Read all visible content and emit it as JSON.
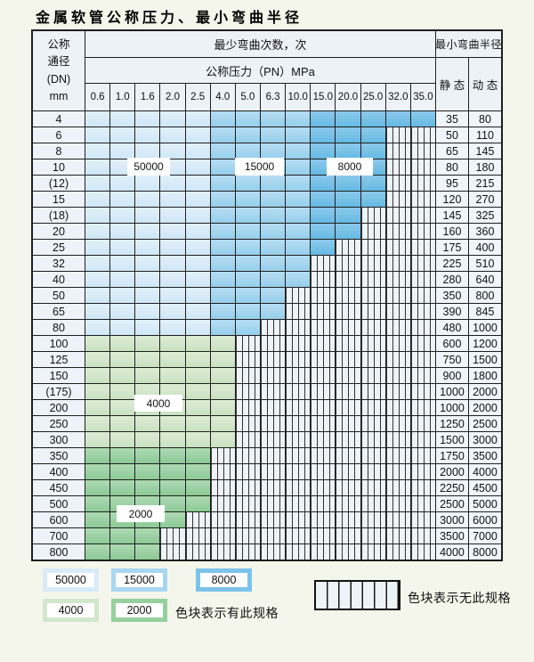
{
  "title": "金属软管公称压力、最小弯曲半径",
  "table": {
    "header": {
      "dn_lines": [
        "公称",
        "通径",
        "(DN)",
        "mm"
      ],
      "min_bend_cycles_title": "最少弯曲次数，次",
      "nominal_pressure_title": "公称压力（PN）MPa",
      "min_bend_radius_title": "最小弯曲半径",
      "static_label": "静 态",
      "dynamic_label": "动 态",
      "pressures": [
        "0.6",
        "1.0",
        "1.6",
        "2.0",
        "2.5",
        "4.0",
        "5.0",
        "6.3",
        "10.0",
        "15.0",
        "20.0",
        "25.0",
        "32.0",
        "35.0"
      ]
    },
    "zone_labels": {
      "z50000": "50000",
      "z15000": "15000",
      "z8000": "8000",
      "z4000": "4000",
      "z2000": "2000"
    },
    "rows": [
      {
        "dn": "4",
        "zone": "blue",
        "last_colored_col": 13,
        "static_radius": "35",
        "dynamic_radius": "80"
      },
      {
        "dn": "6",
        "zone": "blue",
        "last_colored_col": 11,
        "static_radius": "50",
        "dynamic_radius": "110"
      },
      {
        "dn": "8",
        "zone": "blue",
        "last_colored_col": 11,
        "static_radius": "65",
        "dynamic_radius": "145"
      },
      {
        "dn": "10",
        "zone": "blue",
        "last_colored_col": 11,
        "static_radius": "80",
        "dynamic_radius": "180"
      },
      {
        "dn": "(12)",
        "zone": "blue",
        "last_colored_col": 11,
        "static_radius": "95",
        "dynamic_radius": "215"
      },
      {
        "dn": "15",
        "zone": "blue",
        "last_colored_col": 11,
        "static_radius": "120",
        "dynamic_radius": "270"
      },
      {
        "dn": "(18)",
        "zone": "blue",
        "last_colored_col": 10,
        "static_radius": "145",
        "dynamic_radius": "325"
      },
      {
        "dn": "20",
        "zone": "blue",
        "last_colored_col": 10,
        "static_radius": "160",
        "dynamic_radius": "360"
      },
      {
        "dn": "25",
        "zone": "blue",
        "last_colored_col": 9,
        "static_radius": "175",
        "dynamic_radius": "400"
      },
      {
        "dn": "32",
        "zone": "blue",
        "last_colored_col": 8,
        "static_radius": "225",
        "dynamic_radius": "510"
      },
      {
        "dn": "40",
        "zone": "blue",
        "last_colored_col": 8,
        "static_radius": "280",
        "dynamic_radius": "640"
      },
      {
        "dn": "50",
        "zone": "blue",
        "last_colored_col": 7,
        "static_radius": "350",
        "dynamic_radius": "800"
      },
      {
        "dn": "65",
        "zone": "blue",
        "last_colored_col": 7,
        "static_radius": "390",
        "dynamic_radius": "845"
      },
      {
        "dn": "80",
        "zone": "blue",
        "last_colored_col": 6,
        "static_radius": "480",
        "dynamic_radius": "1000"
      },
      {
        "dn": "100",
        "zone": "green-4000",
        "last_colored_col": 5,
        "static_radius": "600",
        "dynamic_radius": "1200"
      },
      {
        "dn": "125",
        "zone": "green-4000",
        "last_colored_col": 5,
        "static_radius": "750",
        "dynamic_radius": "1500"
      },
      {
        "dn": "150",
        "zone": "green-4000",
        "last_colored_col": 5,
        "static_radius": "900",
        "dynamic_radius": "1800"
      },
      {
        "dn": "(175)",
        "zone": "green-4000",
        "last_colored_col": 5,
        "static_radius": "1000",
        "dynamic_radius": "2000"
      },
      {
        "dn": "200",
        "zone": "green-4000",
        "last_colored_col": 5,
        "static_radius": "1000",
        "dynamic_radius": "2000"
      },
      {
        "dn": "250",
        "zone": "green-4000",
        "last_colored_col": 5,
        "static_radius": "1250",
        "dynamic_radius": "2500"
      },
      {
        "dn": "300",
        "zone": "green-4000",
        "last_colored_col": 5,
        "static_radius": "1500",
        "dynamic_radius": "3000"
      },
      {
        "dn": "350",
        "zone": "green-2000",
        "last_colored_col": 4,
        "static_radius": "1750",
        "dynamic_radius": "3500"
      },
      {
        "dn": "400",
        "zone": "green-2000",
        "last_colored_col": 4,
        "static_radius": "2000",
        "dynamic_radius": "4000"
      },
      {
        "dn": "450",
        "zone": "green-2000",
        "last_colored_col": 4,
        "static_radius": "2250",
        "dynamic_radius": "4500"
      },
      {
        "dn": "500",
        "zone": "green-2000",
        "last_colored_col": 4,
        "static_radius": "2500",
        "dynamic_radius": "5000"
      },
      {
        "dn": "600",
        "zone": "green-2000",
        "last_colored_col": 3,
        "static_radius": "3000",
        "dynamic_radius": "6000"
      },
      {
        "dn": "700",
        "zone": "green-2000",
        "last_colored_col": 2,
        "static_radius": "3500",
        "dynamic_radius": "7000"
      },
      {
        "dn": "800",
        "zone": "green-2000",
        "last_colored_col": 2,
        "static_radius": "4000",
        "dynamic_radius": "8000"
      }
    ]
  },
  "legend": {
    "swatches": [
      {
        "value": "50000",
        "color": "#d8ebf8"
      },
      {
        "value": "15000",
        "color": "#a8d6f1"
      },
      {
        "value": "8000",
        "color": "#7cc3e9"
      },
      {
        "value": "4000",
        "color": "#d2e7cb"
      },
      {
        "value": "2000",
        "color": "#97cf9f"
      }
    ],
    "available_note": "色块表示有此规格",
    "unavailable_note": "色块表示无此规格"
  },
  "colors": {
    "page_bg": "#f4f6ec",
    "grid_line": "#1f1f1f",
    "header_bg": "#edf2f7",
    "dn_cell_bg": "#eef3f9",
    "value_cell_bg": "#f0f5fb",
    "hatch_bg": "#eef3f8",
    "hatch_stripe": "#333333",
    "zone_50000": [
      "#e2f0fa",
      "#cfe7f6"
    ],
    "zone_15000": [
      "#b6ddf3",
      "#96cfec"
    ],
    "zone_8000": [
      "#8cc9eb",
      "#66bae4"
    ],
    "zone_4000": [
      "#ddecd6",
      "#c8e2c0"
    ],
    "zone_2000": [
      "#aedbb3",
      "#8cca96"
    ]
  }
}
